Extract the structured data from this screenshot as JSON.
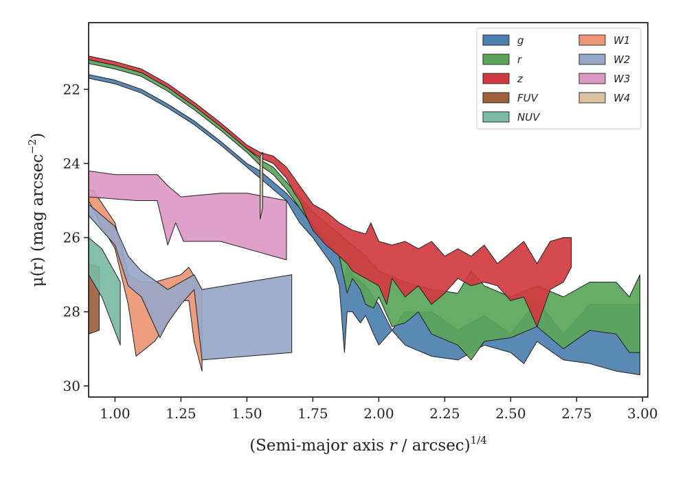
{
  "chart_data": {
    "type": "area",
    "xlabel_main": "(Semi-major axis ",
    "xlabel_var": "r",
    "xlabel_unit": " / arcsec)",
    "xlabel_exp": "1/4",
    "ylabel_main": "μ(r) (mag arcsec",
    "ylabel_exp": "−2",
    "ylabel_close": ")",
    "xlim": [
      0.9,
      3.02
    ],
    "ylim": [
      30.3,
      20.2
    ],
    "y_inverted": true,
    "xticks": [
      1.0,
      1.25,
      1.5,
      1.75,
      2.0,
      2.25,
      2.5,
      2.75,
      3.0
    ],
    "xtick_labels": [
      "1.00",
      "1.25",
      "1.50",
      "1.75",
      "2.00",
      "2.25",
      "2.50",
      "2.75",
      "3.00"
    ],
    "yticks": [
      22,
      24,
      26,
      28,
      30
    ],
    "ytick_labels": [
      "22",
      "24",
      "26",
      "28",
      "30"
    ],
    "grid": false,
    "legend_position": "upper-right",
    "legend_columns": 2,
    "series": [
      {
        "name": "g",
        "color": "#4c7fb0",
        "upper": [
          [
            0.9,
            21.6
          ],
          [
            1.0,
            21.75
          ],
          [
            1.1,
            22.0
          ],
          [
            1.2,
            22.4
          ],
          [
            1.3,
            22.85
          ],
          [
            1.4,
            23.4
          ],
          [
            1.5,
            24.0
          ],
          [
            1.55,
            24.2
          ],
          [
            1.6,
            24.5
          ],
          [
            1.65,
            24.8
          ],
          [
            1.7,
            25.2
          ],
          [
            1.75,
            25.6
          ],
          [
            1.8,
            26.0
          ],
          [
            1.83,
            26.1
          ],
          [
            1.85,
            26.5
          ],
          [
            1.87,
            27.1
          ],
          [
            1.88,
            26.8
          ],
          [
            1.9,
            27.0
          ],
          [
            1.95,
            27.3
          ],
          [
            2.0,
            27.8
          ],
          [
            2.05,
            28.5
          ],
          [
            2.1,
            28.0
          ],
          [
            2.2,
            28.0
          ],
          [
            2.3,
            28.5
          ],
          [
            2.4,
            28.1
          ],
          [
            2.5,
            28.6
          ],
          [
            2.6,
            27.7
          ],
          [
            2.7,
            28.6
          ],
          [
            2.8,
            27.8
          ],
          [
            2.9,
            27.8
          ],
          [
            2.99,
            27.8
          ]
        ],
        "lower": [
          [
            0.9,
            21.7
          ],
          [
            1.0,
            21.85
          ],
          [
            1.1,
            22.1
          ],
          [
            1.2,
            22.5
          ],
          [
            1.3,
            22.95
          ],
          [
            1.4,
            23.5
          ],
          [
            1.5,
            24.1
          ],
          [
            1.55,
            24.4
          ],
          [
            1.6,
            24.7
          ],
          [
            1.65,
            25.0
          ],
          [
            1.7,
            25.6
          ],
          [
            1.75,
            26.0
          ],
          [
            1.8,
            26.5
          ],
          [
            1.83,
            26.8
          ],
          [
            1.85,
            27.3
          ],
          [
            1.87,
            29.1
          ],
          [
            1.88,
            28.0
          ],
          [
            1.9,
            28.0
          ],
          [
            1.93,
            28.3
          ],
          [
            1.95,
            28.1
          ],
          [
            1.98,
            28.6
          ],
          [
            2.0,
            28.9
          ],
          [
            2.05,
            28.5
          ],
          [
            2.1,
            28.9
          ],
          [
            2.2,
            29.2
          ],
          [
            2.3,
            29.3
          ],
          [
            2.4,
            28.9
          ],
          [
            2.5,
            29.1
          ],
          [
            2.55,
            29.4
          ],
          [
            2.6,
            28.8
          ],
          [
            2.7,
            29.3
          ],
          [
            2.8,
            29.4
          ],
          [
            2.9,
            29.6
          ],
          [
            2.99,
            29.7
          ]
        ]
      },
      {
        "name": "r",
        "color": "#5aa55a",
        "upper": [
          [
            0.9,
            21.2
          ],
          [
            1.0,
            21.35
          ],
          [
            1.1,
            21.55
          ],
          [
            1.2,
            21.95
          ],
          [
            1.3,
            22.45
          ],
          [
            1.4,
            23.0
          ],
          [
            1.5,
            23.6
          ],
          [
            1.55,
            23.9
          ],
          [
            1.6,
            24.1
          ],
          [
            1.65,
            24.5
          ],
          [
            1.7,
            24.9
          ],
          [
            1.75,
            25.3
          ],
          [
            1.8,
            25.6
          ],
          [
            1.85,
            25.9
          ],
          [
            1.9,
            26.2
          ],
          [
            1.95,
            26.5
          ],
          [
            2.0,
            26.9
          ],
          [
            2.1,
            27.2
          ],
          [
            2.2,
            27.4
          ],
          [
            2.3,
            27.5
          ],
          [
            2.35,
            26.9
          ],
          [
            2.4,
            27.3
          ],
          [
            2.5,
            27.6
          ],
          [
            2.6,
            27.3
          ],
          [
            2.7,
            27.6
          ],
          [
            2.8,
            27.2
          ],
          [
            2.9,
            27.2
          ],
          [
            2.95,
            27.6
          ],
          [
            2.99,
            27.0
          ]
        ],
        "lower": [
          [
            0.9,
            21.3
          ],
          [
            1.0,
            21.45
          ],
          [
            1.1,
            21.65
          ],
          [
            1.2,
            22.05
          ],
          [
            1.3,
            22.55
          ],
          [
            1.4,
            23.1
          ],
          [
            1.5,
            23.7
          ],
          [
            1.55,
            24.05
          ],
          [
            1.6,
            24.3
          ],
          [
            1.65,
            24.7
          ],
          [
            1.7,
            25.2
          ],
          [
            1.75,
            25.7
          ],
          [
            1.8,
            26.1
          ],
          [
            1.85,
            26.5
          ],
          [
            1.88,
            27.5
          ],
          [
            1.9,
            27.1
          ],
          [
            1.93,
            27.4
          ],
          [
            1.95,
            27.8
          ],
          [
            1.98,
            27.9
          ],
          [
            2.0,
            27.6
          ],
          [
            2.05,
            28.4
          ],
          [
            2.1,
            28.3
          ],
          [
            2.15,
            28.0
          ],
          [
            2.2,
            28.6
          ],
          [
            2.3,
            28.9
          ],
          [
            2.35,
            29.3
          ],
          [
            2.4,
            28.8
          ],
          [
            2.5,
            28.7
          ],
          [
            2.6,
            28.4
          ],
          [
            2.7,
            29.0
          ],
          [
            2.8,
            28.5
          ],
          [
            2.9,
            28.6
          ],
          [
            2.95,
            29.1
          ],
          [
            2.99,
            29.1
          ]
        ]
      },
      {
        "name": "z",
        "color": "#d03a3e",
        "upper": [
          [
            0.9,
            21.1
          ],
          [
            1.0,
            21.25
          ],
          [
            1.1,
            21.45
          ],
          [
            1.2,
            21.85
          ],
          [
            1.3,
            22.35
          ],
          [
            1.4,
            22.9
          ],
          [
            1.5,
            23.5
          ],
          [
            1.55,
            23.7
          ],
          [
            1.6,
            23.8
          ],
          [
            1.65,
            24.1
          ],
          [
            1.68,
            24.4
          ],
          [
            1.7,
            24.6
          ],
          [
            1.73,
            24.9
          ],
          [
            1.75,
            25.1
          ],
          [
            1.8,
            25.3
          ],
          [
            1.85,
            25.6
          ],
          [
            1.9,
            25.8
          ],
          [
            1.95,
            25.9
          ],
          [
            1.97,
            25.6
          ],
          [
            2.0,
            26.1
          ],
          [
            2.05,
            26.2
          ],
          [
            2.1,
            26.1
          ],
          [
            2.15,
            26.3
          ],
          [
            2.2,
            26.1
          ],
          [
            2.25,
            26.5
          ],
          [
            2.3,
            26.3
          ],
          [
            2.35,
            26.5
          ],
          [
            2.4,
            26.2
          ],
          [
            2.45,
            26.7
          ],
          [
            2.5,
            26.4
          ],
          [
            2.55,
            26.1
          ],
          [
            2.6,
            26.7
          ],
          [
            2.65,
            26.1
          ],
          [
            2.7,
            26.0
          ],
          [
            2.73,
            26.0
          ]
        ],
        "lower": [
          [
            0.9,
            21.2
          ],
          [
            1.0,
            21.35
          ],
          [
            1.1,
            21.55
          ],
          [
            1.2,
            21.95
          ],
          [
            1.3,
            22.45
          ],
          [
            1.4,
            23.0
          ],
          [
            1.5,
            23.6
          ],
          [
            1.55,
            23.85
          ],
          [
            1.6,
            24.0
          ],
          [
            1.65,
            24.4
          ],
          [
            1.68,
            24.8
          ],
          [
            1.7,
            25.0
          ],
          [
            1.73,
            25.5
          ],
          [
            1.75,
            25.8
          ],
          [
            1.8,
            26.2
          ],
          [
            1.85,
            26.5
          ],
          [
            1.88,
            26.7
          ],
          [
            1.9,
            26.9
          ],
          [
            1.95,
            27.1
          ],
          [
            2.0,
            27.3
          ],
          [
            2.03,
            27.8
          ],
          [
            2.05,
            27.1
          ],
          [
            2.1,
            27.6
          ],
          [
            2.15,
            27.3
          ],
          [
            2.2,
            27.8
          ],
          [
            2.25,
            27.5
          ],
          [
            2.3,
            27.1
          ],
          [
            2.35,
            27.3
          ],
          [
            2.4,
            27.2
          ],
          [
            2.45,
            27.3
          ],
          [
            2.5,
            27.7
          ],
          [
            2.55,
            27.6
          ],
          [
            2.6,
            28.4
          ],
          [
            2.65,
            27.4
          ],
          [
            2.7,
            27.2
          ],
          [
            2.73,
            26.8
          ]
        ]
      },
      {
        "name": "FUV",
        "color": "#9d5f3e",
        "upper": [
          [
            0.9,
            26.7
          ],
          [
            0.94,
            26.8
          ]
        ],
        "lower": [
          [
            0.9,
            28.6
          ],
          [
            0.94,
            28.5
          ]
        ]
      },
      {
        "name": "NUV",
        "color": "#7bbaa5",
        "upper": [
          [
            0.9,
            26.0
          ],
          [
            0.95,
            26.3
          ],
          [
            1.02,
            27.2
          ]
        ],
        "lower": [
          [
            0.9,
            27.0
          ],
          [
            0.95,
            27.6
          ],
          [
            1.02,
            28.9
          ]
        ]
      },
      {
        "name": "W1",
        "color": "#eb9674",
        "upper": [
          [
            0.9,
            24.7
          ],
          [
            0.92,
            24.75
          ],
          [
            1.0,
            25.6
          ],
          [
            1.05,
            27.0
          ],
          [
            1.1,
            27.2
          ],
          [
            1.15,
            27.2
          ],
          [
            1.25,
            27.0
          ],
          [
            1.28,
            26.8
          ],
          [
            1.33,
            27.4
          ]
        ],
        "lower": [
          [
            0.9,
            25.0
          ],
          [
            0.95,
            25.7
          ],
          [
            1.0,
            26.3
          ],
          [
            1.05,
            27.8
          ],
          [
            1.08,
            29.2
          ],
          [
            1.15,
            28.8
          ],
          [
            1.2,
            28.3
          ],
          [
            1.25,
            27.7
          ],
          [
            1.28,
            27.7
          ],
          [
            1.3,
            28.8
          ],
          [
            1.33,
            29.6
          ]
        ]
      },
      {
        "name": "W2",
        "color": "#97a7c8",
        "upper": [
          [
            0.9,
            25.1
          ],
          [
            1.0,
            25.7
          ],
          [
            1.05,
            26.5
          ],
          [
            1.1,
            26.9
          ],
          [
            1.2,
            27.4
          ],
          [
            1.3,
            27.0
          ],
          [
            1.33,
            27.4
          ],
          [
            1.67,
            27.0
          ]
        ],
        "lower": [
          [
            0.9,
            25.4
          ],
          [
            1.0,
            26.2
          ],
          [
            1.05,
            27.3
          ],
          [
            1.1,
            27.6
          ],
          [
            1.17,
            28.7
          ],
          [
            1.2,
            28.3
          ],
          [
            1.25,
            27.8
          ],
          [
            1.3,
            27.4
          ],
          [
            1.33,
            29.3
          ],
          [
            1.67,
            29.1
          ]
        ]
      },
      {
        "name": "W3",
        "color": "#dc98c4",
        "upper": [
          [
            0.9,
            24.2
          ],
          [
            1.0,
            24.3
          ],
          [
            1.08,
            24.3
          ],
          [
            1.16,
            24.3
          ],
          [
            1.2,
            24.6
          ],
          [
            1.25,
            24.9
          ],
          [
            1.4,
            24.8
          ],
          [
            1.5,
            24.8
          ],
          [
            1.65,
            25.0
          ]
        ],
        "lower": [
          [
            0.9,
            24.9
          ],
          [
            1.08,
            25.0
          ],
          [
            1.16,
            25.0
          ],
          [
            1.2,
            26.2
          ],
          [
            1.23,
            25.6
          ],
          [
            1.26,
            26.1
          ],
          [
            1.4,
            26.1
          ],
          [
            1.55,
            26.4
          ],
          [
            1.65,
            26.6
          ]
        ]
      },
      {
        "name": "W4",
        "color": "#dcc1a0",
        "upper": [
          [
            1.55,
            23.8
          ],
          [
            1.56,
            23.7
          ]
        ],
        "lower": [
          [
            1.55,
            25.5
          ],
          [
            1.56,
            25.2
          ]
        ]
      }
    ]
  }
}
